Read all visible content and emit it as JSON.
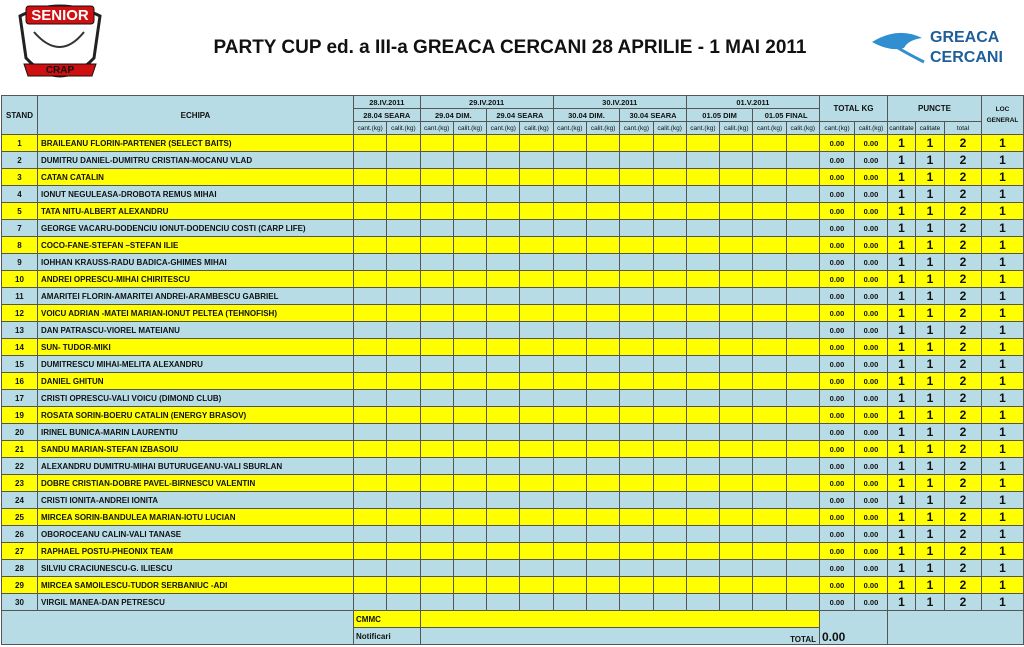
{
  "header": {
    "logo_left": {
      "line1": "SENIOR",
      "line2": "CRAP"
    },
    "title": "PARTY CUP ed. a III-a GREACA CERCANI 28 APRILIE - 1 MAI 2011",
    "logo_right": {
      "line1": "GREACA",
      "line2": "CERCANI"
    }
  },
  "table": {
    "columns": {
      "stand": "STAND",
      "team": "ECHIPA",
      "days": [
        {
          "date": "28.IV.2011",
          "sessions": [
            "28.04 SEARA"
          ]
        },
        {
          "date": "29.IV.2011",
          "sessions": [
            "29.04 DIM.",
            "29.04 SEARA"
          ]
        },
        {
          "date": "30.IV.2011",
          "sessions": [
            "30.04 DIM.",
            "30.04 SEARA"
          ]
        },
        {
          "date": "01.V.2011",
          "sessions": [
            "01.05 DIM",
            "01.05 FINAL"
          ]
        }
      ],
      "total": "TOTAL KG",
      "points": "PUNCTE",
      "rank": "LOC GENERAL",
      "cant": "cant.(kg)",
      "calit": "calit.(kg)",
      "points_sub": [
        "cantitate",
        "calitate",
        "total"
      ]
    },
    "rows": [
      {
        "stand": 1,
        "team": "BRAILEANU FLORIN-PARTENER (SELECT BAITS)",
        "cant": "0.00",
        "calit": "0.00",
        "p_cant": 1,
        "p_calit": 1,
        "p_total": 2,
        "loc": 1
      },
      {
        "stand": 2,
        "team": "DUMITRU DANIEL-DUMITRU CRISTIAN-MOCANU VLAD",
        "cant": "0.00",
        "calit": "0.00",
        "p_cant": 1,
        "p_calit": 1,
        "p_total": 2,
        "loc": 1
      },
      {
        "stand": 3,
        "team": "CATAN CATALIN",
        "cant": "0.00",
        "calit": "0.00",
        "p_cant": 1,
        "p_calit": 1,
        "p_total": 2,
        "loc": 1
      },
      {
        "stand": 4,
        "team": "IONUT NEGULEASA-DROBOTA REMUS MIHAI",
        "cant": "0.00",
        "calit": "0.00",
        "p_cant": 1,
        "p_calit": 1,
        "p_total": 2,
        "loc": 1
      },
      {
        "stand": 5,
        "team": "TATA NITU-ALBERT ALEXANDRU",
        "cant": "0.00",
        "calit": "0.00",
        "p_cant": 1,
        "p_calit": 1,
        "p_total": 2,
        "loc": 1
      },
      {
        "stand": 7,
        "team": " GEORGE VACARU-DODENCIU IONUT-DODENCIU COSTI (CARP LIFE)",
        "cant": "0.00",
        "calit": "0.00",
        "p_cant": 1,
        "p_calit": 1,
        "p_total": 2,
        "loc": 1
      },
      {
        "stand": 8,
        "team": "COCO-FANE-STEFAN –STEFAN ILIE",
        "cant": "0.00",
        "calit": "0.00",
        "p_cant": 1,
        "p_calit": 1,
        "p_total": 2,
        "loc": 1
      },
      {
        "stand": 9,
        "team": "IOHHAN KRAUSS-RADU BADICA-GHIMES MIHAI",
        "cant": "0.00",
        "calit": "0.00",
        "p_cant": 1,
        "p_calit": 1,
        "p_total": 2,
        "loc": 1
      },
      {
        "stand": 10,
        "team": "ANDREI OPRESCU-MIHAI CHIRITESCU",
        "cant": "0.00",
        "calit": "0.00",
        "p_cant": 1,
        "p_calit": 1,
        "p_total": 2,
        "loc": 1
      },
      {
        "stand": 11,
        "team": "AMARITEI FLORIN-AMARITEI ANDREI-ARAMBESCU GABRIEL",
        "cant": "0.00",
        "calit": "0.00",
        "p_cant": 1,
        "p_calit": 1,
        "p_total": 2,
        "loc": 1
      },
      {
        "stand": 12,
        "team": "VOICU ADRIAN -MATEI MARIAN-IONUT PELTEA (TEHNOFISH)",
        "cant": "0.00",
        "calit": "0.00",
        "p_cant": 1,
        "p_calit": 1,
        "p_total": 2,
        "loc": 1
      },
      {
        "stand": 13,
        "team": "DAN PATRASCU-VIOREL MATEIANU",
        "cant": "0.00",
        "calit": "0.00",
        "p_cant": 1,
        "p_calit": 1,
        "p_total": 2,
        "loc": 1
      },
      {
        "stand": 14,
        "team": "SUN- TUDOR-MIKI",
        "cant": "0.00",
        "calit": "0.00",
        "p_cant": 1,
        "p_calit": 1,
        "p_total": 2,
        "loc": 1
      },
      {
        "stand": 15,
        "team": "DUMITRESCU MIHAI-MELITA ALEXANDRU",
        "cant": "0.00",
        "calit": "0.00",
        "p_cant": 1,
        "p_calit": 1,
        "p_total": 2,
        "loc": 1
      },
      {
        "stand": 16,
        "team": "DANIEL GHITUN",
        "cant": "0.00",
        "calit": "0.00",
        "p_cant": 1,
        "p_calit": 1,
        "p_total": 2,
        "loc": 1
      },
      {
        "stand": 17,
        "team": "CRISTI OPRESCU-VALI VOICU  (DIMOND CLUB)",
        "cant": "0.00",
        "calit": "0.00",
        "p_cant": 1,
        "p_calit": 1,
        "p_total": 2,
        "loc": 1
      },
      {
        "stand": 19,
        "team": "ROSATA SORIN-BOERU CATALIN (ENERGY BRASOV)",
        "cant": "0.00",
        "calit": "0.00",
        "p_cant": 1,
        "p_calit": 1,
        "p_total": 2,
        "loc": 1
      },
      {
        "stand": 20,
        "team": "IRINEL BUNICA-MARIN LAURENTIU",
        "cant": "0.00",
        "calit": "0.00",
        "p_cant": 1,
        "p_calit": 1,
        "p_total": 2,
        "loc": 1
      },
      {
        "stand": 21,
        "team": "SANDU MARIAN-STEFAN IZBASOIU",
        "cant": "0.00",
        "calit": "0.00",
        "p_cant": 1,
        "p_calit": 1,
        "p_total": 2,
        "loc": 1
      },
      {
        "stand": 22,
        "team": "ALEXANDRU DUMITRU-MIHAI BUTURUGEANU-VALI SBURLAN",
        "cant": "0.00",
        "calit": "0.00",
        "p_cant": 1,
        "p_calit": 1,
        "p_total": 2,
        "loc": 1
      },
      {
        "stand": 23,
        "team": "DOBRE CRISTIAN-DOBRE PAVEL-BIRNESCU VALENTIN",
        "cant": "0.00",
        "calit": "0.00",
        "p_cant": 1,
        "p_calit": 1,
        "p_total": 2,
        "loc": 1
      },
      {
        "stand": 24,
        "team": "CRISTI IONITA-ANDREI IONITA",
        "cant": "0.00",
        "calit": "0.00",
        "p_cant": 1,
        "p_calit": 1,
        "p_total": 2,
        "loc": 1
      },
      {
        "stand": 25,
        "team": "MIRCEA SORIN-BANDULEA MARIAN-IOTU LUCIAN",
        "cant": "0.00",
        "calit": "0.00",
        "p_cant": 1,
        "p_calit": 1,
        "p_total": 2,
        "loc": 1
      },
      {
        "stand": 26,
        "team": "OBOROCEANU CALIN-VALI TANASE",
        "cant": "0.00",
        "calit": "0.00",
        "p_cant": 1,
        "p_calit": 1,
        "p_total": 2,
        "loc": 1
      },
      {
        "stand": 27,
        "team": "RAPHAEL POSTU-PHEONIX TEAM",
        "cant": "0.00",
        "calit": "0.00",
        "p_cant": 1,
        "p_calit": 1,
        "p_total": 2,
        "loc": 1
      },
      {
        "stand": 28,
        "team": "SILVIU CRACIUNESCU-G. ILIESCU",
        "cant": "0.00",
        "calit": "0.00",
        "p_cant": 1,
        "p_calit": 1,
        "p_total": 2,
        "loc": 1
      },
      {
        "stand": 29,
        "team": "MIRCEA SAMOILESCU-TUDOR SERBANIUC -ADI",
        "cant": "0.00",
        "calit": "0.00",
        "p_cant": 1,
        "p_calit": 1,
        "p_total": 2,
        "loc": 1
      },
      {
        "stand": 30,
        "team": "VIRGIL MANEA-DAN PETRESCU",
        "cant": "0.00",
        "calit": "0.00",
        "p_cant": 1,
        "p_calit": 1,
        "p_total": 2,
        "loc": 1
      }
    ],
    "footer": {
      "cmmc": "CMMC",
      "notificari": "Notificari",
      "total_label": "TOTAL",
      "total_value": "0.00"
    }
  }
}
